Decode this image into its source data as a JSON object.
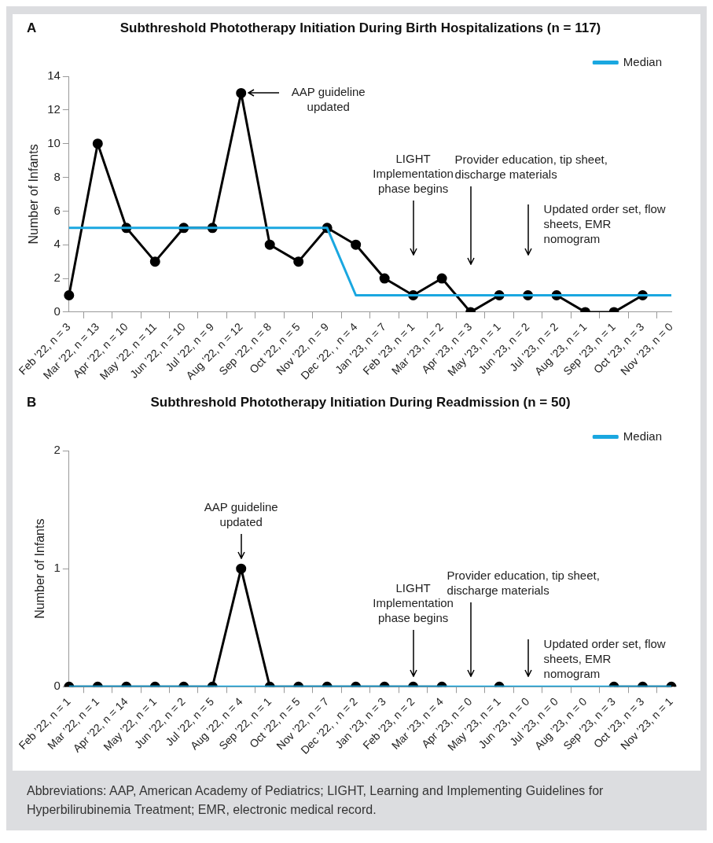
{
  "chart_data": [
    {
      "type": "line",
      "title": "Subthreshold Phototherapy Initiation During Birth Hospitalizations (n = 117)",
      "ylabel": "Number of Infants",
      "categories": [
        "Feb ’22, n = 3",
        "Mar ’22, n = 13",
        "Apr ’22, n = 10",
        "May ’22, n = 11",
        "Jun ’22, n = 10",
        "Jul ’22, n = 9",
        "Aug ’22, n = 12",
        "Sep ’22, n = 8",
        "Oct ’22, n = 5",
        "Nov ’22, n = 9",
        "Dec ’22, , n = 4",
        "Jan ’23, n = 7",
        "Feb ’23, n = 1",
        "Mar ’23, n = 2",
        "Apr ’23, n = 3",
        "May ’23, n = 1",
        "Jun ’23, n = 2",
        "Jul ’23, n = 2",
        "Aug ’23, n = 1",
        "Sep ’23, n = 1",
        "Oct ’23, n = 3",
        "Nov ’23, n = 0"
      ],
      "series": [
        {
          "color": "#000000",
          "marker": "circle",
          "values": [
            1,
            10,
            5,
            3,
            5,
            5,
            13,
            4,
            3,
            5,
            4,
            2,
            1,
            2,
            0,
            1,
            1,
            1,
            0,
            0,
            1,
            null
          ]
        },
        {
          "name": "Median",
          "color": "#1aa7e0",
          "marker": "none",
          "values": [
            5,
            5,
            5,
            5,
            5,
            5,
            5,
            5,
            5,
            5,
            1,
            1,
            1,
            1,
            1,
            1,
            1,
            1,
            1,
            1,
            1,
            1
          ]
        }
      ],
      "ylim": [
        0,
        14
      ],
      "yticks": [
        0,
        2,
        4,
        6,
        8,
        10,
        12,
        14
      ],
      "grid": false,
      "legend": "top right",
      "annotations": [
        "A",
        "AAP guideline updated",
        "LIGHT Implementation phase begins",
        "Provider education, tip sheet, discharge materials",
        "Updated order set, flow sheets, EMR nomogram"
      ]
    },
    {
      "type": "line",
      "title": "Subthreshold Phototherapy Initiation During Readmission (n = 50)",
      "ylabel": "Number of Infants",
      "categories": [
        "Feb ’22, n = 1",
        "Mar ’22, n = 1",
        "Apr ’22, n = 14",
        "May ’22, n = 1",
        "Jun ’22, n = 2",
        "Jul ’22, n = 5",
        "Aug ’22, n = 4",
        "Sep ’22, n = 1",
        "Oct ’22, n = 5",
        "Nov ’22, n = 7",
        "Dec ’22, , n = 2",
        "Jan ’23, n = 3",
        "Feb ’23, n = 2",
        "Mar ’23, n = 4",
        "Apr ’23, n = 0",
        "May ’23, n = 1",
        "Jun ’23, n = 0",
        "Jul ’23, n = 0",
        "Aug ’23, n = 0",
        "Sep ’23, n = 3",
        "Oct ’23, n = 3",
        "Nov ’23, n = 1"
      ],
      "series": [
        {
          "color": "#000000",
          "marker": "circle",
          "values": [
            0,
            0,
            0,
            0,
            0,
            0,
            1,
            0,
            0,
            0,
            0,
            0,
            0,
            0,
            null,
            0,
            null,
            null,
            null,
            0,
            0,
            0
          ]
        },
        {
          "name": "Median",
          "color": "#1aa7e0",
          "marker": "none",
          "values": [
            0,
            0,
            0,
            0,
            0,
            0,
            0,
            0,
            0,
            0,
            0,
            0,
            0,
            0,
            0,
            0,
            0,
            0,
            0,
            0,
            0,
            0
          ]
        }
      ],
      "ylim": [
        0,
        2
      ],
      "yticks": [
        0,
        1,
        2
      ],
      "grid": false,
      "legend": "top right",
      "annotations": [
        "B",
        "AAP guideline updated",
        "LIGHT Implementation phase begins",
        "Provider education, tip sheet, discharge materials",
        "Updated order set, flow sheets, EMR nomogram",
        "Abbreviations: AAP, American Academy of Pediatrics; LIGHT, Learning and Implementing Guidelines for Hyperbilirubinemia Treatment; EMR, electronic medical record."
      ]
    }
  ]
}
